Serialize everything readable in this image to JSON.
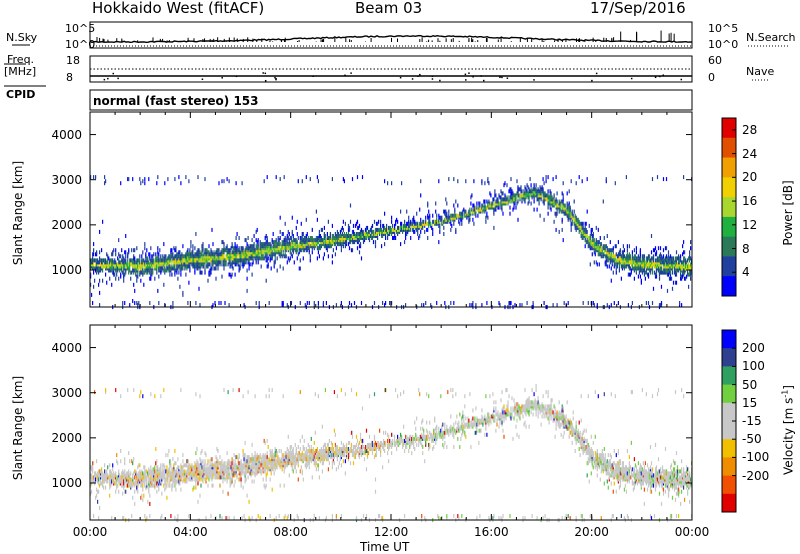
{
  "header": {
    "radar": "Hokkaido West (fitACF)",
    "beam": "Beam 03",
    "date": "17/Sep/2016"
  },
  "summary": {
    "nsky_label": "N.Sky",
    "nsearch_label": "N.Search",
    "noise_ticks": [
      "10^5",
      "10^0"
    ],
    "freq_label": "Freq.",
    "freq_unit": "[MHz]",
    "freq_ticks": [
      "18",
      "8"
    ],
    "nave_label": "Nave",
    "nave_ticks": [
      "60",
      "0"
    ],
    "cpid_label": "CPID",
    "cpid_text": "normal (fast stereo) 153"
  },
  "colors": {
    "power": [
      "#0000ff",
      "#2040a0",
      "#2a7a5a",
      "#20b040",
      "#a8d830",
      "#f0d000",
      "#f0a000",
      "#e05000",
      "#e00000"
    ],
    "velocity": [
      "#e00000",
      "#f05000",
      "#f08c00",
      "#f0c000",
      "#c8c8c8",
      "#c8c8c8",
      "#70d040",
      "#30a060",
      "#304090",
      "#0000ff"
    ]
  },
  "chart_data": [
    {
      "type": "heatmap",
      "panel": "power",
      "ylabel": "Slant Range [km]",
      "ylim": [
        180,
        4500
      ],
      "yticks": [
        "1000",
        "2000",
        "3000",
        "4000"
      ],
      "xlim": [
        0,
        24
      ],
      "colorbar_label": "Power [dB]",
      "colorbar_ticks": [
        "4",
        "8",
        "12",
        "16",
        "20",
        "24",
        "28"
      ],
      "colorbar_range": [
        0,
        30
      ],
      "echo_band_center_km": [
        [
          0,
          1150
        ],
        [
          2,
          1100
        ],
        [
          4,
          1250
        ],
        [
          6,
          1350
        ],
        [
          8,
          1550
        ],
        [
          10,
          1700
        ],
        [
          12,
          1900
        ],
        [
          14,
          2100
        ],
        [
          16,
          2450
        ],
        [
          17.7,
          2750
        ],
        [
          19,
          2350
        ],
        [
          20,
          1600
        ],
        [
          21,
          1250
        ],
        [
          22,
          1150
        ],
        [
          24,
          1100
        ]
      ]
    },
    {
      "type": "heatmap",
      "panel": "velocity",
      "ylabel": "Slant Range [km]",
      "ylim": [
        180,
        4500
      ],
      "yticks": [
        "1000",
        "2000",
        "3000",
        "4000"
      ],
      "xlabel": "Time UT",
      "xticks": [
        "00:00",
        "04:00",
        "08:00",
        "12:00",
        "16:00",
        "20:00",
        "00:00"
      ],
      "xlim": [
        0,
        24
      ],
      "colorbar_label": "Velocity [m s^-1]",
      "colorbar_ticks": [
        "200",
        "100",
        "50",
        "15",
        "-15",
        "-50",
        "-100",
        "-200"
      ],
      "echo_band_center_km": [
        [
          0,
          1150
        ],
        [
          2,
          1100
        ],
        [
          4,
          1250
        ],
        [
          6,
          1350
        ],
        [
          8,
          1550
        ],
        [
          10,
          1700
        ],
        [
          12,
          1900
        ],
        [
          14,
          2100
        ],
        [
          16,
          2450
        ],
        [
          17.7,
          2750
        ],
        [
          19,
          2350
        ],
        [
          20,
          1600
        ],
        [
          21,
          1250
        ],
        [
          22,
          1150
        ],
        [
          24,
          1100
        ]
      ]
    }
  ]
}
